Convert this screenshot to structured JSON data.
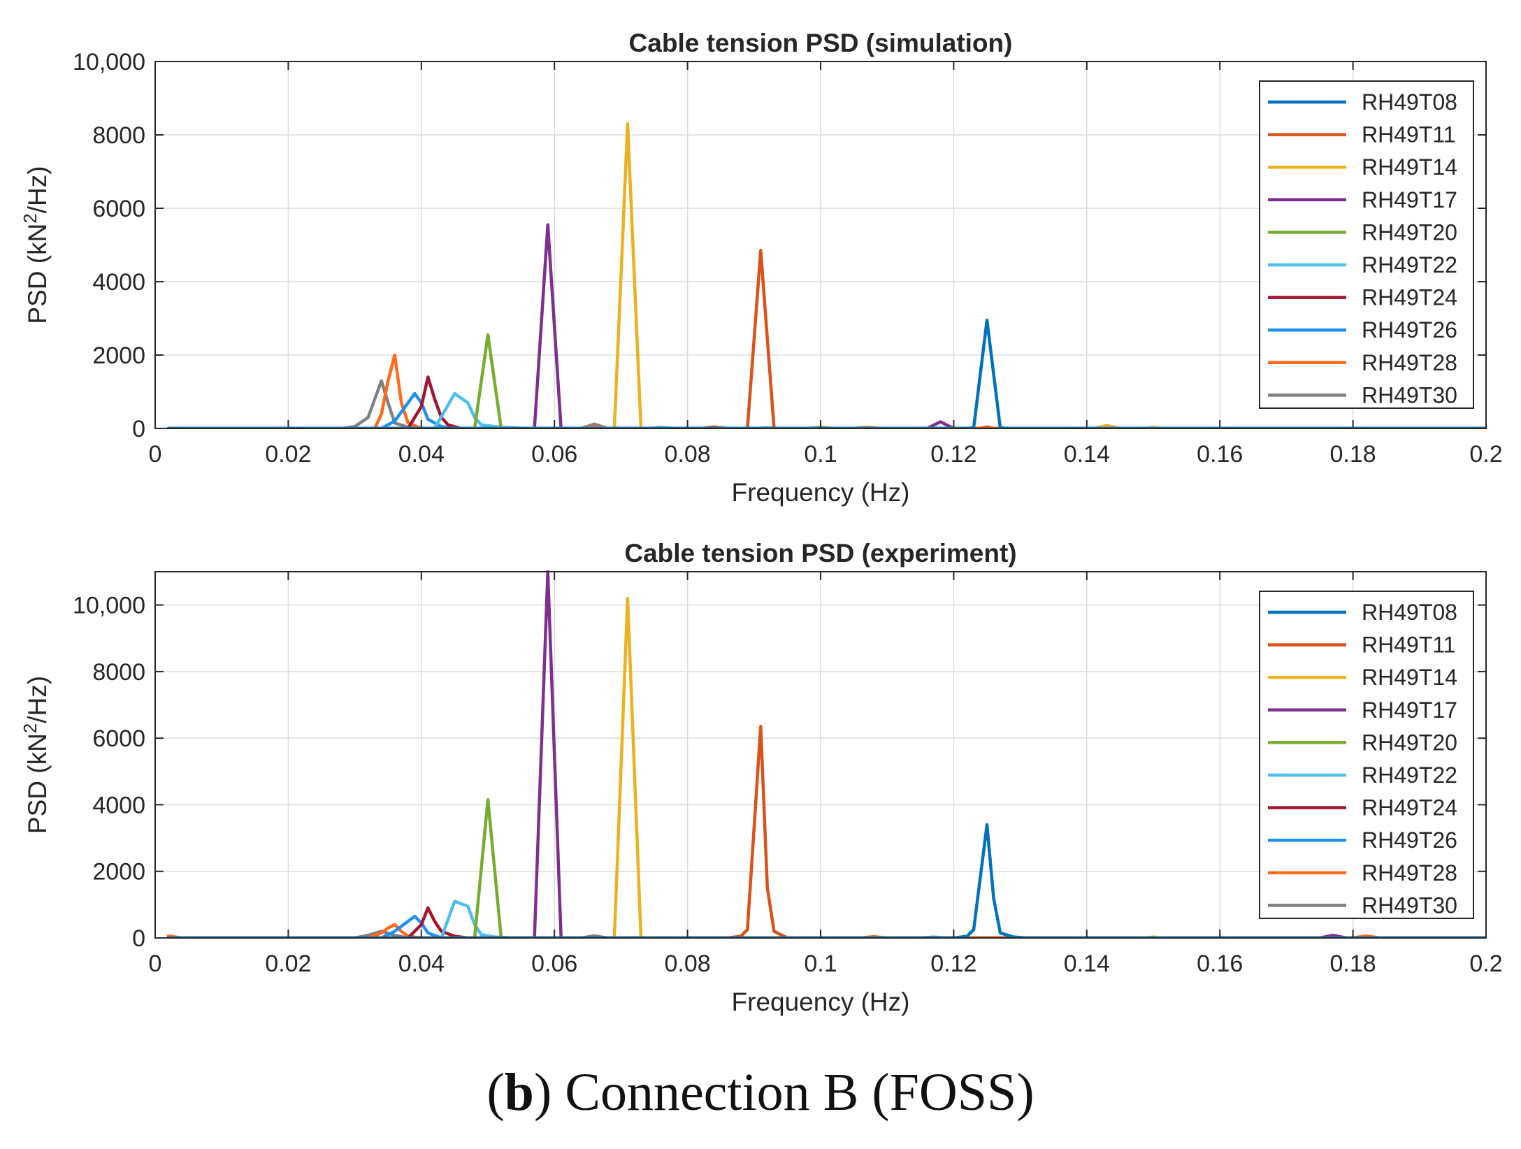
{
  "caption": {
    "prefix": "(",
    "letter": "b",
    "suffix": ") Connection B (FOSS)"
  },
  "legend_entries": [
    "RH49T08",
    "RH49T11",
    "RH49T14",
    "RH49T17",
    "RH49T20",
    "RH49T22",
    "RH49T24",
    "RH49T26",
    "RH49T28",
    "RH49T30"
  ],
  "colors": {
    "RH49T08": "#0072BD",
    "RH49T11": "#D95319",
    "RH49T14": "#EDB120",
    "RH49T17": "#7E2F8E",
    "RH49T20": "#77AC30",
    "RH49T22": "#4DBEEE",
    "RH49T24": "#A2142F",
    "RH49T26": "#1E90F0",
    "RH49T28": "#FF6A1A",
    "RH49T30": "#808080"
  },
  "chart_data": [
    {
      "type": "line",
      "title": "Cable tension PSD (simulation)",
      "xlabel": "Frequency (Hz)",
      "ylabel": "PSD (kN²/Hz)",
      "xlim": [
        0,
        0.2
      ],
      "ylim": [
        0,
        10000
      ],
      "xticks": [
        "0",
        "0.02",
        "0.04",
        "0.06",
        "0.08",
        "0.1",
        "0.12",
        "0.14",
        "0.16",
        "0.18",
        "0.2"
      ],
      "yticks": [
        "0",
        "2000",
        "4000",
        "6000",
        "8000",
        "10,000"
      ],
      "legend_position": "top-right",
      "grid": true,
      "series": [
        {
          "name": "RH49T08",
          "points": [
            [
              0.002,
              0
            ],
            [
              0.122,
              0
            ],
            [
              0.123,
              20
            ],
            [
              0.125,
              2950
            ],
            [
              0.127,
              20
            ],
            [
              0.128,
              0
            ],
            [
              0.2,
              0
            ]
          ]
        },
        {
          "name": "RH49T11",
          "points": [
            [
              0.002,
              0
            ],
            [
              0.082,
              0
            ],
            [
              0.084,
              40
            ],
            [
              0.086,
              0
            ],
            [
              0.089,
              0
            ],
            [
              0.091,
              4850
            ],
            [
              0.093,
              0
            ],
            [
              0.124,
              0
            ],
            [
              0.125,
              40
            ],
            [
              0.126,
              0
            ],
            [
              0.2,
              0
            ]
          ]
        },
        {
          "name": "RH49T14",
          "points": [
            [
              0.002,
              0
            ],
            [
              0.069,
              0
            ],
            [
              0.071,
              8300
            ],
            [
              0.073,
              0
            ],
            [
              0.141,
              0
            ],
            [
              0.143,
              80
            ],
            [
              0.145,
              0
            ],
            [
              0.149,
              0
            ],
            [
              0.15,
              30
            ],
            [
              0.151,
              0
            ],
            [
              0.2,
              0
            ]
          ]
        },
        {
          "name": "RH49T17",
          "points": [
            [
              0.002,
              0
            ],
            [
              0.057,
              0
            ],
            [
              0.059,
              5550
            ],
            [
              0.061,
              0
            ],
            [
              0.116,
              0
            ],
            [
              0.118,
              180
            ],
            [
              0.12,
              0
            ],
            [
              0.2,
              0
            ]
          ]
        },
        {
          "name": "RH49T20",
          "points": [
            [
              0.002,
              0
            ],
            [
              0.048,
              0
            ],
            [
              0.05,
              2550
            ],
            [
              0.052,
              0
            ],
            [
              0.098,
              0
            ],
            [
              0.1,
              30
            ],
            [
              0.102,
              0
            ],
            [
              0.2,
              0
            ]
          ]
        },
        {
          "name": "RH49T22",
          "points": [
            [
              0.002,
              0
            ],
            [
              0.042,
              0
            ],
            [
              0.045,
              950
            ],
            [
              0.047,
              700
            ],
            [
              0.048,
              300
            ],
            [
              0.049,
              100
            ],
            [
              0.052,
              30
            ],
            [
              0.056,
              0
            ],
            [
              0.074,
              0
            ],
            [
              0.076,
              30
            ],
            [
              0.078,
              0
            ],
            [
              0.09,
              0
            ],
            [
              0.092,
              20
            ],
            [
              0.094,
              0
            ],
            [
              0.2,
              0
            ]
          ]
        },
        {
          "name": "RH49T24",
          "points": [
            [
              0.002,
              0
            ],
            [
              0.038,
              0
            ],
            [
              0.04,
              600
            ],
            [
              0.041,
              1400
            ],
            [
              0.042,
              800
            ],
            [
              0.043,
              300
            ],
            [
              0.044,
              100
            ],
            [
              0.046,
              0
            ],
            [
              0.2,
              0
            ]
          ]
        },
        {
          "name": "RH49T26",
          "points": [
            [
              0.002,
              0
            ],
            [
              0.034,
              0
            ],
            [
              0.036,
              200
            ],
            [
              0.038,
              700
            ],
            [
              0.039,
              950
            ],
            [
              0.04,
              700
            ],
            [
              0.041,
              250
            ],
            [
              0.043,
              50
            ],
            [
              0.045,
              0
            ],
            [
              0.2,
              0
            ]
          ]
        },
        {
          "name": "RH49T28",
          "points": [
            [
              0.002,
              0
            ],
            [
              0.033,
              0
            ],
            [
              0.034,
              400
            ],
            [
              0.035,
              1300
            ],
            [
              0.036,
              2000
            ],
            [
              0.037,
              700
            ],
            [
              0.038,
              150
            ],
            [
              0.04,
              0
            ],
            [
              0.064,
              0
            ],
            [
              0.066,
              40
            ],
            [
              0.068,
              0
            ],
            [
              0.105,
              0
            ],
            [
              0.107,
              30
            ],
            [
              0.109,
              0
            ],
            [
              0.2,
              0
            ]
          ]
        },
        {
          "name": "RH49T30",
          "points": [
            [
              0.002,
              0
            ],
            [
              0.028,
              0
            ],
            [
              0.03,
              50
            ],
            [
              0.032,
              300
            ],
            [
              0.033,
              800
            ],
            [
              0.034,
              1300
            ],
            [
              0.035,
              700
            ],
            [
              0.036,
              150
            ],
            [
              0.038,
              30
            ],
            [
              0.04,
              0
            ],
            [
              0.064,
              0
            ],
            [
              0.066,
              120
            ],
            [
              0.068,
              0
            ],
            [
              0.2,
              0
            ]
          ]
        }
      ]
    },
    {
      "type": "line",
      "title": "Cable tension PSD (experiment)",
      "xlabel": "Frequency (Hz)",
      "ylabel": "PSD (kN²/Hz)",
      "xlim": [
        0,
        0.2
      ],
      "ylim": [
        0,
        11000
      ],
      "xticks": [
        "0",
        "0.02",
        "0.04",
        "0.06",
        "0.08",
        "0.1",
        "0.12",
        "0.14",
        "0.16",
        "0.18",
        "0.2"
      ],
      "yticks": [
        "0",
        "2000",
        "4000",
        "6000",
        "8000",
        "10,000"
      ],
      "legend_position": "top-right",
      "grid": true,
      "series": [
        {
          "name": "RH49T08",
          "points": [
            [
              0.002,
              0
            ],
            [
              0.12,
              0
            ],
            [
              0.122,
              50
            ],
            [
              0.123,
              250
            ],
            [
              0.125,
              3400
            ],
            [
              0.126,
              1200
            ],
            [
              0.127,
              150
            ],
            [
              0.129,
              30
            ],
            [
              0.131,
              0
            ],
            [
              0.2,
              0
            ]
          ]
        },
        {
          "name": "RH49T11",
          "points": [
            [
              0.002,
              0
            ],
            [
              0.086,
              0
            ],
            [
              0.088,
              50
            ],
            [
              0.089,
              250
            ],
            [
              0.091,
              6350
            ],
            [
              0.092,
              1500
            ],
            [
              0.093,
              200
            ],
            [
              0.095,
              0
            ],
            [
              0.2,
              0
            ]
          ]
        },
        {
          "name": "RH49T14",
          "points": [
            [
              0.002,
              0
            ],
            [
              0.069,
              0
            ],
            [
              0.071,
              10200
            ],
            [
              0.073,
              0
            ],
            [
              0.149,
              0
            ],
            [
              0.15,
              30
            ],
            [
              0.151,
              0
            ],
            [
              0.2,
              0
            ]
          ]
        },
        {
          "name": "RH49T17",
          "points": [
            [
              0.002,
              0
            ],
            [
              0.057,
              0
            ],
            [
              0.059,
              11000
            ],
            [
              0.061,
              0
            ],
            [
              0.175,
              0
            ],
            [
              0.177,
              80
            ],
            [
              0.179,
              0
            ],
            [
              0.2,
              0
            ]
          ]
        },
        {
          "name": "RH49T20",
          "points": [
            [
              0.002,
              0
            ],
            [
              0.048,
              0
            ],
            [
              0.05,
              4150
            ],
            [
              0.052,
              0
            ],
            [
              0.2,
              0
            ]
          ]
        },
        {
          "name": "RH49T22",
          "points": [
            [
              0.002,
              0
            ],
            [
              0.043,
              0
            ],
            [
              0.045,
              1100
            ],
            [
              0.047,
              950
            ],
            [
              0.048,
              400
            ],
            [
              0.049,
              100
            ],
            [
              0.051,
              30
            ],
            [
              0.054,
              0
            ],
            [
              0.115,
              0
            ],
            [
              0.117,
              30
            ],
            [
              0.119,
              0
            ],
            [
              0.2,
              0
            ]
          ]
        },
        {
          "name": "RH49T24",
          "points": [
            [
              0.002,
              0
            ],
            [
              0.038,
              0
            ],
            [
              0.04,
              400
            ],
            [
              0.041,
              900
            ],
            [
              0.042,
              500
            ],
            [
              0.043,
              200
            ],
            [
              0.045,
              50
            ],
            [
              0.047,
              0
            ],
            [
              0.2,
              0
            ]
          ]
        },
        {
          "name": "RH49T26",
          "points": [
            [
              0.002,
              0
            ],
            [
              0.034,
              0
            ],
            [
              0.036,
              200
            ],
            [
              0.038,
              500
            ],
            [
              0.039,
              650
            ],
            [
              0.04,
              450
            ],
            [
              0.041,
              150
            ],
            [
              0.043,
              0
            ],
            [
              0.2,
              0
            ]
          ]
        },
        {
          "name": "RH49T28",
          "points": [
            [
              0.002,
              60
            ],
            [
              0.004,
              0
            ],
            [
              0.032,
              0
            ],
            [
              0.034,
              150
            ],
            [
              0.035,
              300
            ],
            [
              0.036,
              400
            ],
            [
              0.037,
              200
            ],
            [
              0.038,
              50
            ],
            [
              0.04,
              0
            ],
            [
              0.106,
              0
            ],
            [
              0.108,
              40
            ],
            [
              0.11,
              0
            ],
            [
              0.18,
              0
            ],
            [
              0.182,
              60
            ],
            [
              0.184,
              0
            ],
            [
              0.2,
              0
            ]
          ]
        },
        {
          "name": "RH49T30",
          "points": [
            [
              0.002,
              20
            ],
            [
              0.004,
              0
            ],
            [
              0.03,
              0
            ],
            [
              0.032,
              80
            ],
            [
              0.034,
              200
            ],
            [
              0.036,
              80
            ],
            [
              0.038,
              0
            ],
            [
              0.064,
              0
            ],
            [
              0.066,
              60
            ],
            [
              0.068,
              0
            ],
            [
              0.2,
              0
            ]
          ]
        }
      ]
    }
  ]
}
